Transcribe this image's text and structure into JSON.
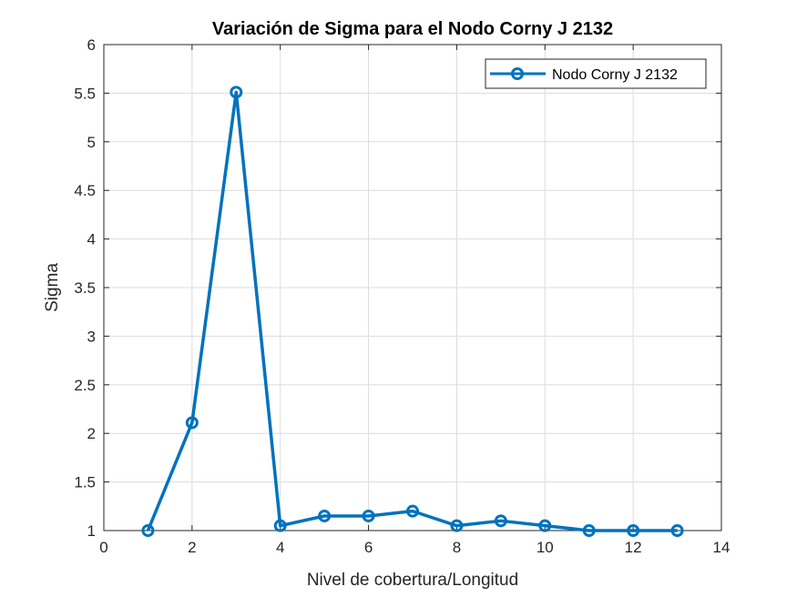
{
  "chart_data": {
    "type": "line",
    "title": "Variación de Sigma para el Nodo Corny J 2132",
    "xlabel": "Nivel de cobertura/Longitud",
    "ylabel": "Sigma",
    "xlim": [
      0,
      14
    ],
    "ylim": [
      1,
      6
    ],
    "xticks": [
      0,
      2,
      4,
      6,
      8,
      10,
      12,
      14
    ],
    "xtick_labels": [
      "0",
      "2",
      "4",
      "6",
      "8",
      "10",
      "12",
      "14"
    ],
    "yticks": [
      1,
      1.5,
      2,
      2.5,
      3,
      3.5,
      4,
      4.5,
      5,
      5.5,
      6
    ],
    "ytick_labels": [
      "1",
      "1.5",
      "2",
      "2.5",
      "3",
      "3.5",
      "4",
      "4.5",
      "5",
      "5.5",
      "6"
    ],
    "grid": true,
    "legend_position": "top-right",
    "series": [
      {
        "name": "Nodo Corny J 2132",
        "color": "#0072BD",
        "marker": "circle",
        "x": [
          1,
          2,
          3,
          4,
          5,
          6,
          7,
          8,
          9,
          10,
          11,
          12,
          13
        ],
        "y": [
          1.0,
          2.11,
          5.51,
          1.05,
          1.15,
          1.15,
          1.2,
          1.05,
          1.1,
          1.05,
          1.0,
          1.0,
          1.0
        ]
      }
    ]
  }
}
